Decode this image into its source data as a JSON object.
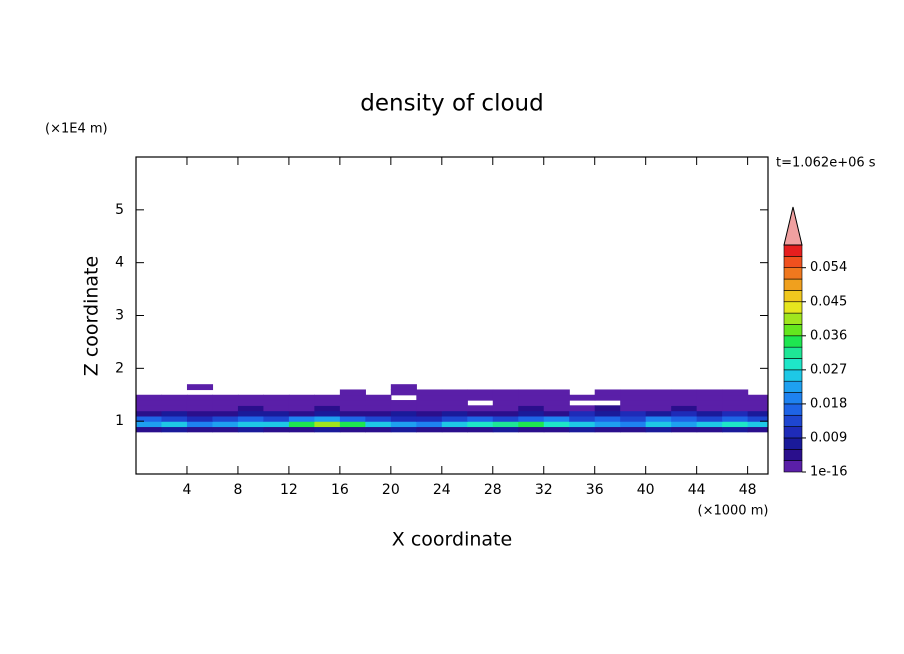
{
  "chart_data": {
    "type": "contour",
    "title": "density of cloud",
    "x_label": "X coordinate",
    "y_label": "Z coordinate",
    "x_unit": "(×1000 m)",
    "y_unit": "(×1E4 m)",
    "time_label": "t=1.062e+06 s",
    "xlim": [
      0,
      49.6
    ],
    "ylim": [
      0,
      6
    ],
    "xticks": [
      4,
      8,
      12,
      16,
      20,
      24,
      28,
      32,
      36,
      40,
      44,
      48
    ],
    "yticks": [
      1,
      2,
      3,
      4,
      5
    ],
    "x": [
      1,
      3,
      5,
      7,
      9,
      11,
      13,
      15,
      17,
      19,
      21,
      23,
      25,
      27,
      29,
      31,
      33,
      35,
      37,
      39,
      41,
      43,
      45,
      47,
      49
    ],
    "z": [
      0.85,
      0.95,
      1.05,
      1.15,
      1.25,
      1.35,
      1.45,
      1.55,
      1.65
    ],
    "values": [
      [
        0.006,
        0.009,
        0.006,
        0.006,
        0.009,
        0.006,
        0.006,
        0.009,
        0.006,
        0.006,
        0.009,
        0.006,
        0.006,
        0.006,
        0.009,
        0.006,
        0.006,
        0.009,
        0.006,
        0.006,
        0.009,
        0.006,
        0.006,
        0.009,
        0.006
      ],
      [
        0.024,
        0.027,
        0.021,
        0.024,
        0.027,
        0.027,
        0.036,
        0.042,
        0.036,
        0.027,
        0.024,
        0.021,
        0.027,
        0.03,
        0.033,
        0.036,
        0.03,
        0.027,
        0.024,
        0.021,
        0.027,
        0.024,
        0.027,
        0.03,
        0.027
      ],
      [
        0.018,
        0.015,
        0.012,
        0.015,
        0.018,
        0.015,
        0.021,
        0.024,
        0.018,
        0.015,
        0.012,
        0.012,
        0.015,
        0.018,
        0.015,
        0.018,
        0.021,
        0.015,
        0.018,
        0.015,
        0.021,
        0.018,
        0.015,
        0.018,
        0.015
      ],
      [
        0.006,
        0.009,
        0.006,
        0.006,
        0.009,
        0.009,
        0.006,
        0.009,
        0.006,
        0.006,
        0.009,
        0.006,
        0.009,
        0.006,
        0.006,
        0.009,
        0.006,
        0.012,
        0.009,
        0.012,
        0.009,
        0.012,
        0.009,
        0.012,
        0.009
      ],
      [
        0.003,
        0.003,
        0.002,
        0.003,
        0.004,
        0.003,
        0.003,
        0.004,
        0.003,
        0.002,
        0.003,
        0.003,
        0.002,
        0.003,
        0.003,
        0.004,
        0.003,
        0.003,
        0.004,
        0.003,
        0.003,
        0.004,
        0.003,
        0.003,
        0.003
      ],
      [
        0.001,
        0.001,
        0.001,
        0.001,
        0.001,
        0.001,
        0.001,
        0.001,
        0.001,
        0.001,
        0.001,
        0.001,
        0.001,
        null,
        0.001,
        0.001,
        0.001,
        null,
        null,
        0.001,
        0.001,
        0.001,
        0.001,
        0.001,
        0.001
      ],
      [
        0.001,
        0.001,
        0.001,
        0.001,
        0.001,
        0.001,
        0.001,
        0.001,
        0.001,
        0.001,
        null,
        0.001,
        0.001,
        0.001,
        0.001,
        0.001,
        0.001,
        0.001,
        0.001,
        0.001,
        0.001,
        0.001,
        0.001,
        0.001,
        0.001
      ],
      [
        null,
        null,
        null,
        null,
        null,
        null,
        null,
        null,
        0.001,
        null,
        0.001,
        0.001,
        0.001,
        0.001,
        0.001,
        0.001,
        0.001,
        null,
        0.001,
        0.001,
        0.001,
        0.001,
        0.001,
        0.001,
        null
      ],
      [
        null,
        null,
        0.001,
        null,
        null,
        null,
        null,
        null,
        null,
        null,
        0.001,
        null,
        null,
        null,
        null,
        null,
        null,
        null,
        null,
        null,
        null,
        null,
        null,
        null,
        null
      ]
    ],
    "colorbar": {
      "lim": [
        1e-16,
        0.06
      ],
      "ticks": [
        1e-16,
        0.009,
        0.018,
        0.027,
        0.036,
        0.045,
        0.054
      ],
      "colors": [
        "#5a1fa8",
        "#2a0f8c",
        "#1a1a9a",
        "#1e2bb8",
        "#1e46d0",
        "#1e64e6",
        "#1e82f0",
        "#1ea0f0",
        "#1ec8e6",
        "#1ee6c8",
        "#1ee696",
        "#1ee650",
        "#64e61e",
        "#a0e61e",
        "#e6e61e",
        "#f0c81e",
        "#f0a01e",
        "#f0781e",
        "#f0501e",
        "#e61e1e"
      ],
      "over_color": "#f0a0a0"
    }
  }
}
